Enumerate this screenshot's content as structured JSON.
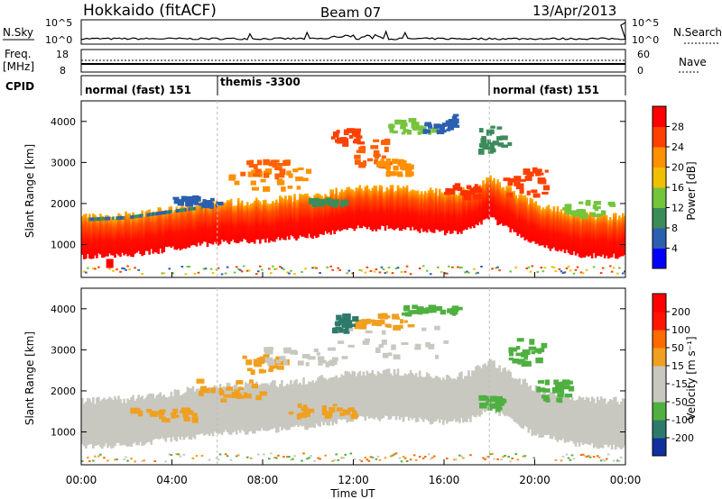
{
  "header": {
    "station": "Hokkaido (fitACF)",
    "beam": "Beam 07",
    "date": "13/Apr/2013"
  },
  "top_strips": {
    "nsky_label": "N.Sky",
    "nsky_ticks": [
      "10^5",
      "10^0"
    ],
    "nsearch_label": "N.Search",
    "nsearch_ticks": [
      "10^5",
      "10^0"
    ],
    "freq_label": "Freq.",
    "freq_unit": "[MHz]",
    "freq_ticks": [
      "18",
      "8"
    ],
    "nave_label": "Nave",
    "nave_ticks": [
      "60",
      "0"
    ],
    "cpid_label": "CPID",
    "cpid_segments": [
      {
        "text": "normal (fast) 151",
        "start_h": 0,
        "end_h": 6
      },
      {
        "text": "themis -3300",
        "start_h": 6,
        "end_h": 18
      },
      {
        "text": "normal (fast) 151",
        "start_h": 18,
        "end_h": 24
      }
    ]
  },
  "chart_data": [
    {
      "type": "heatmap",
      "panel": "power",
      "ylabel": "Slant Range [km]",
      "ylim": [
        200,
        4500
      ],
      "yticks": [
        "4000",
        "3000",
        "2000",
        "1000"
      ],
      "colorbar_label": "Power [dB]",
      "colorbar_ticks": [
        "28",
        "24",
        "20",
        "16",
        "12",
        "8",
        "4"
      ],
      "colorbar_colors": [
        "#0000ff",
        "#2b5fb0",
        "#3c8c5a",
        "#74c43c",
        "#f0c000",
        "#ff9000",
        "#ff4000",
        "#ff0000"
      ],
      "xticks": [
        "00:00",
        "04:00",
        "08:00",
        "12:00",
        "16:00",
        "20:00",
        "00:00"
      ],
      "xlim_hours": [
        0,
        24
      ],
      "band_center_km": [
        [
          0,
          1150
        ],
        [
          2,
          1200
        ],
        [
          4,
          1350
        ],
        [
          6,
          1500
        ],
        [
          8,
          1550
        ],
        [
          10,
          1650
        ],
        [
          12,
          1850
        ],
        [
          14,
          1850
        ],
        [
          16,
          1750
        ],
        [
          17,
          1800
        ],
        [
          18,
          2100
        ],
        [
          18.6,
          1900
        ],
        [
          20,
          1450
        ],
        [
          22,
          1200
        ],
        [
          24,
          1150
        ]
      ]
    },
    {
      "type": "heatmap",
      "panel": "velocity",
      "ylabel": "Slant Range [km]",
      "ylim": [
        200,
        4500
      ],
      "yticks": [
        "4000",
        "3000",
        "2000",
        "1000"
      ],
      "colorbar_label": "Velocity [m s⁻¹]",
      "colorbar_ticks": [
        "200",
        "100",
        "50",
        "15",
        "-15",
        "-50",
        "-100",
        "-200"
      ],
      "colorbar_colors": [
        "#1030a0",
        "#2e7a6a",
        "#4fb040",
        "#c8c8c0",
        "#c8c8c0",
        "#f0a020",
        "#ff6a00",
        "#ff1500",
        "#ff0000"
      ],
      "xticks": [
        "00:00",
        "04:00",
        "08:00",
        "12:00",
        "16:00",
        "20:00",
        "00:00"
      ],
      "xlabel": "Time UT",
      "xlim_hours": [
        0,
        24
      ]
    }
  ]
}
